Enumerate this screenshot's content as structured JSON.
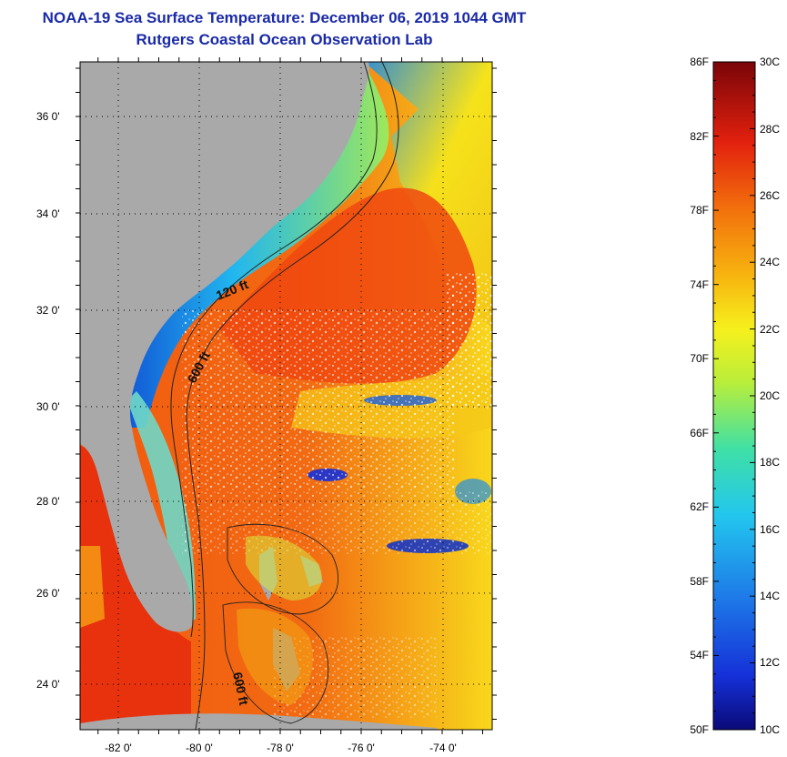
{
  "title": {
    "line1": "NOAA-19 Sea Surface Temperature:  December 06, 2019 1044 GMT",
    "line2": "Rutgers Coastal Ocean Observation Lab"
  },
  "map": {
    "lon_ticks": [
      "-82 0'",
      "-80 0'",
      "-78 0'",
      "-76 0'",
      "-74 0'"
    ],
    "lat_ticks": [
      "36 0'",
      "34 0'",
      "32 0'",
      "30 0'",
      "28 0'",
      "26 0'",
      "24 0'"
    ],
    "contour_labels": [
      "120 ft",
      "600 ft",
      "600 ft"
    ],
    "colors": {
      "land": "#a9a9a9",
      "cold": "#0a1db5",
      "warm": "#e2200e"
    }
  },
  "colorbar": {
    "fahrenheit_labels": [
      "86F",
      "82F",
      "78F",
      "74F",
      "70F",
      "66F",
      "62F",
      "58F",
      "54F",
      "50F"
    ],
    "celsius_labels": [
      "30C",
      "28C",
      "26C",
      "24C",
      "22C",
      "20C",
      "18C",
      "16C",
      "14C",
      "12C",
      "10C"
    ],
    "range_f": [
      50,
      86
    ],
    "range_c": [
      10,
      30
    ]
  }
}
